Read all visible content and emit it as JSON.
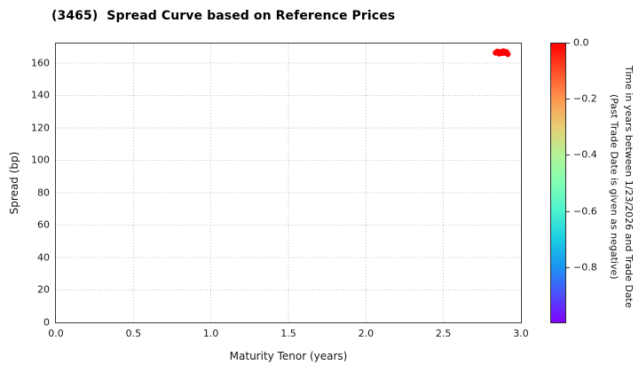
{
  "chart_data": {
    "type": "scatter",
    "title": "(3465)  Spread Curve based on Reference Prices",
    "xlabel": "Maturity Tenor (years)",
    "ylabel": "Spread (bp)",
    "xlim": [
      0.0,
      3.0
    ],
    "ylim": [
      0,
      172
    ],
    "x_tick_labels": [
      "0.0",
      "0.5",
      "1.0",
      "1.5",
      "2.0",
      "2.5",
      "3.0"
    ],
    "y_ticks": [
      0,
      20,
      40,
      60,
      80,
      100,
      120,
      140,
      160
    ],
    "grid": "dotted gray gridlines at every major tick, both axes",
    "legend": "none",
    "point_color": "#ff0000",
    "points": [
      {
        "tenor": 2.836,
        "spread": 166.3,
        "time": 0.0
      },
      {
        "tenor": 2.848,
        "spread": 167.1,
        "time": -0.01
      },
      {
        "tenor": 2.858,
        "spread": 165.7,
        "time": 0.0
      },
      {
        "tenor": 2.868,
        "spread": 166.9,
        "time": -0.02
      },
      {
        "tenor": 2.878,
        "spread": 166.0,
        "time": 0.0
      },
      {
        "tenor": 2.888,
        "spread": 167.3,
        "time": -0.01
      },
      {
        "tenor": 2.896,
        "spread": 166.2,
        "time": 0.0
      },
      {
        "tenor": 2.906,
        "spread": 166.8,
        "time": -0.01
      },
      {
        "tenor": 2.915,
        "spread": 165.4,
        "time": -0.02
      }
    ],
    "colorbar": {
      "label_line1": "Time in years between 1/23/2026 and Trade Date",
      "label_line2": "(Past Trade Date is given as negative)",
      "tick_labels": [
        "0.0",
        "−0.2",
        "−0.4",
        "−0.6",
        "−0.8"
      ],
      "tick_values": [
        0.0,
        -0.2,
        -0.4,
        -0.6,
        -0.8
      ],
      "range": [
        -1.0,
        0.0
      ],
      "colormap": "rainbow",
      "gradient_top_to_bottom": [
        "#ff0000",
        "#ff4f28",
        "#ff964f",
        "#e6ce74",
        "#b2f296",
        "#80ffb4",
        "#4df2ce",
        "#1acee3",
        "#1a96f2",
        "#4d4ffc",
        "#8000ff"
      ]
    }
  }
}
